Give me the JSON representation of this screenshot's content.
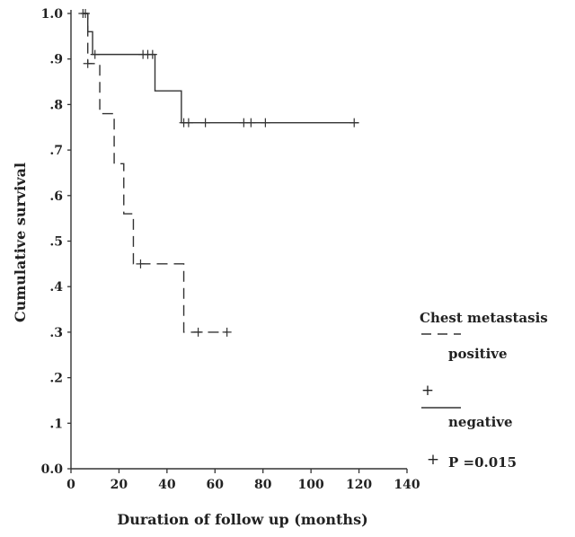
{
  "chart_data": {
    "type": "line",
    "subtype": "kaplan-meier",
    "title": "",
    "xlabel": "Duration of follow up (months)",
    "ylabel": "Cumulative survival",
    "xlim": [
      0,
      140
    ],
    "ylim": [
      0.0,
      1.0
    ],
    "x_ticks": [
      0,
      20,
      40,
      60,
      80,
      100,
      120,
      140
    ],
    "x_tick_labels": [
      "0",
      "20",
      "40",
      "60",
      "80",
      "100",
      "120",
      "140"
    ],
    "y_ticks": [
      0.0,
      0.1,
      0.2,
      0.3,
      0.4,
      0.5,
      0.6,
      0.7,
      0.8,
      0.9,
      1.0
    ],
    "y_tick_labels": [
      "0.0",
      ".1",
      ".2",
      ".3",
      ".4",
      ".5",
      ".6",
      ".7",
      ".8",
      ".9",
      "1.0"
    ],
    "grid": false,
    "legend": {
      "title": "Chest metastasis",
      "position": "right",
      "entries": [
        {
          "label": "positive",
          "style": "dashed",
          "censor_symbol": "+"
        },
        {
          "label": "negative",
          "style": "solid",
          "censor_symbol": "+"
        }
      ]
    },
    "annotations": [
      "P =0.015"
    ],
    "series": [
      {
        "name": "positive",
        "line_style": "dashed",
        "color": "#333333",
        "steps": [
          [
            5,
            1.0
          ],
          [
            7,
            0.89
          ],
          [
            12,
            0.78
          ],
          [
            18,
            0.67
          ],
          [
            22,
            0.56
          ],
          [
            26,
            0.45
          ],
          [
            47,
            0.3
          ],
          [
            65,
            0.3
          ]
        ],
        "censored": [
          [
            7,
            0.89
          ],
          [
            29,
            0.45
          ],
          [
            53,
            0.3
          ],
          [
            65,
            0.3
          ]
        ]
      },
      {
        "name": "negative",
        "line_style": "solid",
        "color": "#333333",
        "steps": [
          [
            5,
            1.0
          ],
          [
            7,
            0.96
          ],
          [
            9,
            0.91
          ],
          [
            35,
            0.83
          ],
          [
            46,
            0.76
          ],
          [
            120,
            0.76
          ]
        ],
        "censored": [
          [
            5,
            1.0
          ],
          [
            6,
            1.0
          ],
          [
            10,
            0.91
          ],
          [
            30,
            0.91
          ],
          [
            32,
            0.91
          ],
          [
            34,
            0.91
          ],
          [
            47,
            0.76
          ],
          [
            49,
            0.76
          ],
          [
            56,
            0.76
          ],
          [
            72,
            0.76
          ],
          [
            75,
            0.76
          ],
          [
            81,
            0.76
          ],
          [
            118,
            0.76
          ]
        ]
      }
    ]
  }
}
